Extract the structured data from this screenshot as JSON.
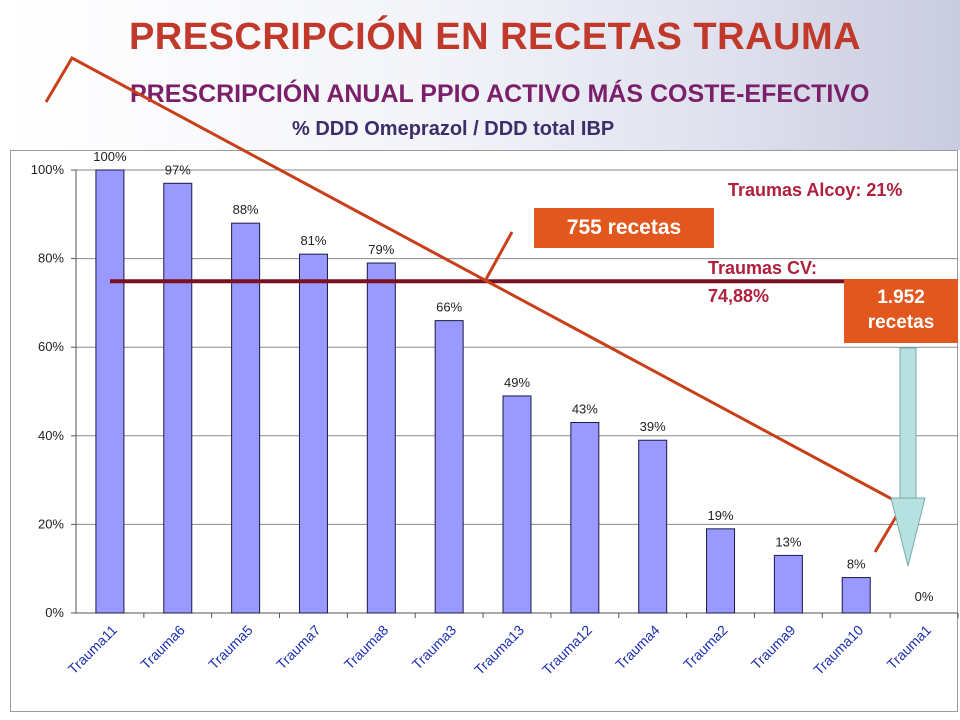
{
  "title": "PRESCRIPCIÓN EN RECETAS TRAUMA",
  "subtitle_main": "PRESCRIPCIÓN ANUAL PPIO ACTIVO MÁS COSTE-EFECTIVO",
  "subtitle_metric": "% DDD Omeprazol / DDD total IBP",
  "callouts": {
    "recetas_755": "755 recetas",
    "recetas_1952_line1": "1.952",
    "recetas_1952_line2": "recetas",
    "alcoy": "Traumas Alcoy: 21%",
    "cv_line1": "Traumas CV:",
    "cv_line2": "74,88%"
  },
  "colors": {
    "bar": "#9999ff",
    "title": "#c0392b",
    "reference_line": "#7a1020",
    "trend_line": "#c8401a",
    "callout_box": "#e2571e",
    "arrow": "#b7e0e0"
  },
  "chart_data": {
    "type": "bar",
    "categories": [
      "Trauma11",
      "Trauma6",
      "Trauma5",
      "Trauma7",
      "Trauma8",
      "Trauma3",
      "Trauma13",
      "Trauma12",
      "Trauma4",
      "Trauma2",
      "Trauma9",
      "Trauma10",
      "Trauma1"
    ],
    "values": [
      100,
      97,
      88,
      81,
      79,
      66,
      49,
      43,
      39,
      19,
      13,
      8,
      0
    ],
    "data_labels": [
      "100%",
      "97%",
      "88%",
      "81%",
      "79%",
      "66%",
      "49%",
      "43%",
      "39%",
      "19%",
      "13%",
      "8%",
      "0%"
    ],
    "yticks": [
      "0%",
      "20%",
      "40%",
      "60%",
      "80%",
      "100%"
    ],
    "ytick_values": [
      0,
      20,
      40,
      60,
      80,
      100
    ],
    "ylim": [
      0,
      100
    ],
    "grid": true,
    "reference_value": 74.88,
    "reference_label": "Traumas CV: 74,88%"
  }
}
